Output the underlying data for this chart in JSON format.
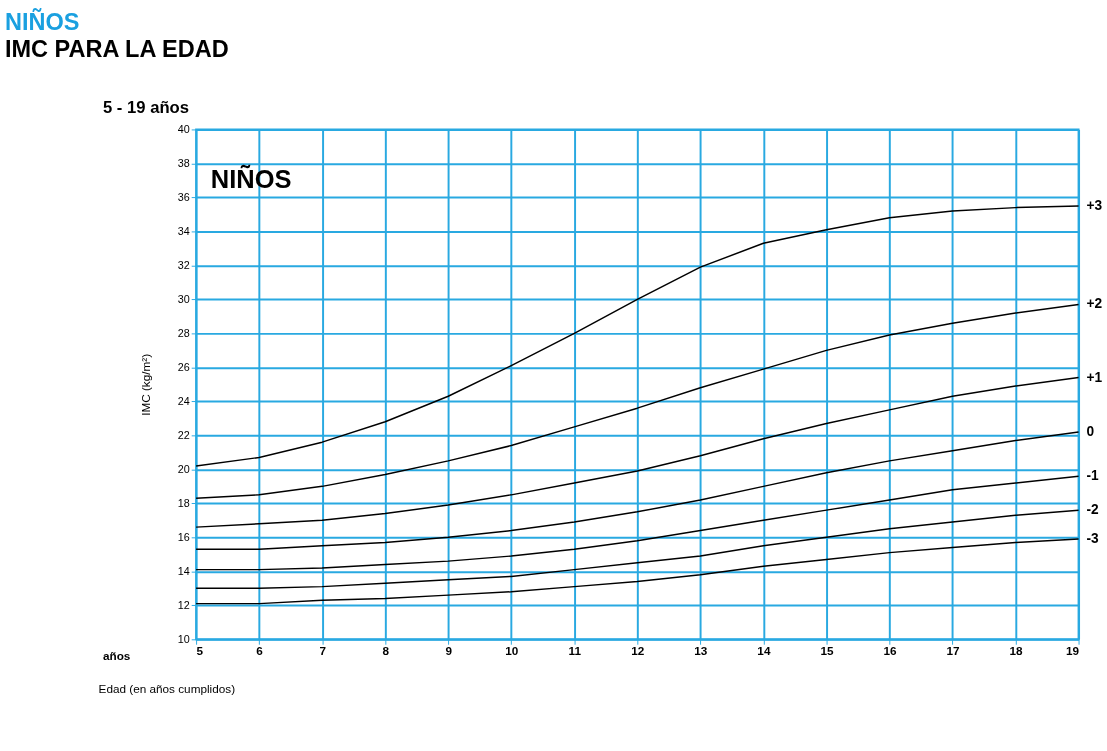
{
  "chart_data": {
    "type": "line",
    "title": "NIÑOS",
    "subtitle": "IMC PARA LA EDAD",
    "xlabel": "Edad (en años cumplidos)",
    "ylabel": "IMC (kg/m²)",
    "annotations": [
      "NIÑOS",
      "años",
      "5 - 19 años"
    ],
    "x": [
      5,
      6,
      7,
      8,
      9,
      10,
      11,
      12,
      13,
      14,
      15,
      16,
      17,
      18,
      19
    ],
    "series": [
      {
        "name": "+3",
        "color": "#000000",
        "values": [
          20.2,
          20.7,
          21.6,
          22.8,
          24.3,
          26.1,
          28.0,
          30.0,
          31.9,
          33.3,
          34.1,
          34.8,
          35.2,
          35.4,
          35.5
        ]
      },
      {
        "name": "+2",
        "color": "#000000",
        "values": [
          18.3,
          18.5,
          19.0,
          19.7,
          20.5,
          21.4,
          22.5,
          23.6,
          24.8,
          25.9,
          27.0,
          27.9,
          28.6,
          29.2,
          29.7
        ]
      },
      {
        "name": "+1",
        "color": "#000000",
        "values": [
          16.6,
          16.8,
          17.0,
          17.4,
          17.9,
          18.5,
          19.2,
          19.9,
          20.8,
          21.8,
          22.7,
          23.5,
          24.3,
          24.9,
          25.4
        ]
      },
      {
        "name": "0",
        "color": "#000000",
        "values": [
          15.3,
          15.3,
          15.5,
          15.7,
          16.0,
          16.4,
          16.9,
          17.5,
          18.2,
          19.0,
          19.8,
          20.5,
          21.1,
          21.7,
          22.2
        ]
      },
      {
        "name": "-1",
        "color": "#000000",
        "values": [
          14.1,
          14.1,
          14.2,
          14.4,
          14.6,
          14.9,
          15.3,
          15.8,
          16.4,
          17.0,
          17.6,
          18.2,
          18.8,
          19.2,
          19.6
        ]
      },
      {
        "name": "-2",
        "color": "#000000",
        "values": [
          13.0,
          13.0,
          13.1,
          13.3,
          13.5,
          13.7,
          14.1,
          14.5,
          14.9,
          15.5,
          16.0,
          16.5,
          16.9,
          17.3,
          17.6
        ]
      },
      {
        "name": "-3",
        "color": "#000000",
        "values": [
          12.1,
          12.1,
          12.3,
          12.4,
          12.6,
          12.8,
          13.1,
          13.4,
          13.8,
          14.3,
          14.7,
          15.1,
          15.4,
          15.7,
          15.9
        ]
      }
    ],
    "xlim": [
      5,
      19
    ],
    "xticks": [
      5,
      6,
      7,
      8,
      9,
      10,
      11,
      12,
      13,
      14,
      15,
      16,
      17,
      18,
      19
    ],
    "ylim": [
      10,
      40
    ],
    "yticks": [
      10,
      12,
      14,
      16,
      18,
      20,
      22,
      24,
      26,
      28,
      30,
      32,
      34,
      36,
      38,
      40
    ],
    "grid": true,
    "legend": false,
    "marker": "none",
    "line_style": "solid"
  }
}
